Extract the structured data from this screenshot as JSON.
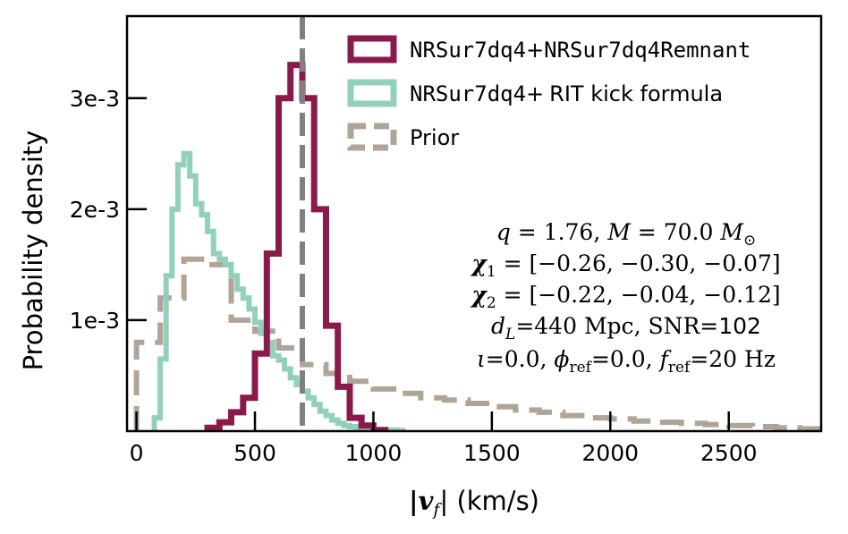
{
  "chart_data": {
    "type": "histogram",
    "xlabel_math": "|v",
    "xlabel_sub": "f",
    "xlabel_unit": "| (km/s)",
    "ylabel": "Probability density",
    "xlim": [
      -40,
      2890
    ],
    "ylim": [
      0,
      0.00374
    ],
    "x_ticks": [
      0,
      500,
      1000,
      1500,
      2000,
      2500
    ],
    "x_tick_labels": [
      "0",
      "500",
      "1000",
      "1500",
      "2000",
      "2500"
    ],
    "y_ticks": [
      0.001,
      0.002,
      0.003
    ],
    "y_tick_labels": [
      "1e-3",
      "2e-3",
      "3e-3"
    ],
    "vline": {
      "x": 700,
      "color": "#808080"
    },
    "series": [
      {
        "legend_mono": "NRSur7dq4",
        "legend_plus": "+",
        "legend_rest_mono": "NRSur7dq4Remnant",
        "color": "#8b1a4c",
        "bin_edges": [
          300,
          350,
          400,
          450,
          500,
          550,
          600,
          650,
          700,
          750,
          800,
          850,
          900,
          950,
          1000,
          1050
        ],
        "values": [
          3e-05,
          8e-05,
          0.00017,
          0.0003,
          0.0007,
          0.0016,
          0.003,
          0.0033,
          0.003,
          0.002,
          0.00095,
          0.0004,
          0.00012,
          5e-05,
          1e-05
        ]
      },
      {
        "legend_mono": "NRSur7dq4",
        "legend_plus": "+",
        "legend_rest_sans": "RIT kick formula",
        "color": "#92d0bc",
        "bin_edges": [
          75,
          100,
          125,
          150,
          175,
          200,
          225,
          250,
          275,
          300,
          325,
          350,
          375,
          400,
          425,
          450,
          475,
          500,
          525,
          550,
          575,
          600,
          625,
          650,
          675,
          700,
          725,
          750,
          775,
          800,
          825,
          850,
          875,
          900,
          925,
          950,
          975,
          1000,
          1025,
          1050,
          1075,
          1100,
          1125
        ],
        "values": [
          0.00012,
          0.00065,
          0.0014,
          0.002,
          0.0024,
          0.0025,
          0.0023,
          0.00205,
          0.00195,
          0.0018,
          0.0016,
          0.00155,
          0.0015,
          0.0014,
          0.00128,
          0.0012,
          0.0011,
          0.00098,
          0.00088,
          0.0008,
          0.00068,
          0.00064,
          0.00056,
          0.00048,
          0.00042,
          0.00036,
          0.0003,
          0.00024,
          0.00018,
          0.00014,
          0.0001,
          7e-05,
          5e-05,
          4e-05,
          3e-05,
          2e-05,
          2e-05,
          1e-05,
          1e-05,
          1e-05,
          1e-05,
          5e-06
        ]
      },
      {
        "legend_sans": "Prior",
        "color": "#b0a496",
        "bin_edges": [
          0,
          100,
          200,
          300,
          400,
          500,
          600,
          700,
          800,
          900,
          1000,
          1100,
          1200,
          1300,
          1400,
          1500,
          1600,
          1700,
          1800,
          1900,
          2000,
          2100,
          2200,
          2300,
          2400,
          2500,
          2600,
          2700,
          2800,
          2900
        ],
        "values": [
          0.0008,
          0.0012,
          0.00155,
          0.0015,
          0.001,
          0.0009,
          0.00075,
          0.0006,
          0.00052,
          0.00045,
          0.00038,
          0.00034,
          0.0003,
          0.00028,
          0.00025,
          0.00022,
          0.00019,
          0.00017,
          0.00014,
          0.00012,
          0.00011,
          9e-05,
          8e-05,
          7e-05,
          6e-05,
          5e-05,
          4e-05,
          3e-05,
          2e-05
        ]
      }
    ],
    "annotation": {
      "q": "1.76",
      "M": "70.0",
      "chi1": "[−0.26, −0.30, −0.07]",
      "chi2": "[−0.22, −0.04, −0.12]",
      "dL": "440 Mpc",
      "snr": "102",
      "iota": "0.0",
      "phi_ref": "0.0",
      "f_ref": "20 Hz"
    }
  }
}
